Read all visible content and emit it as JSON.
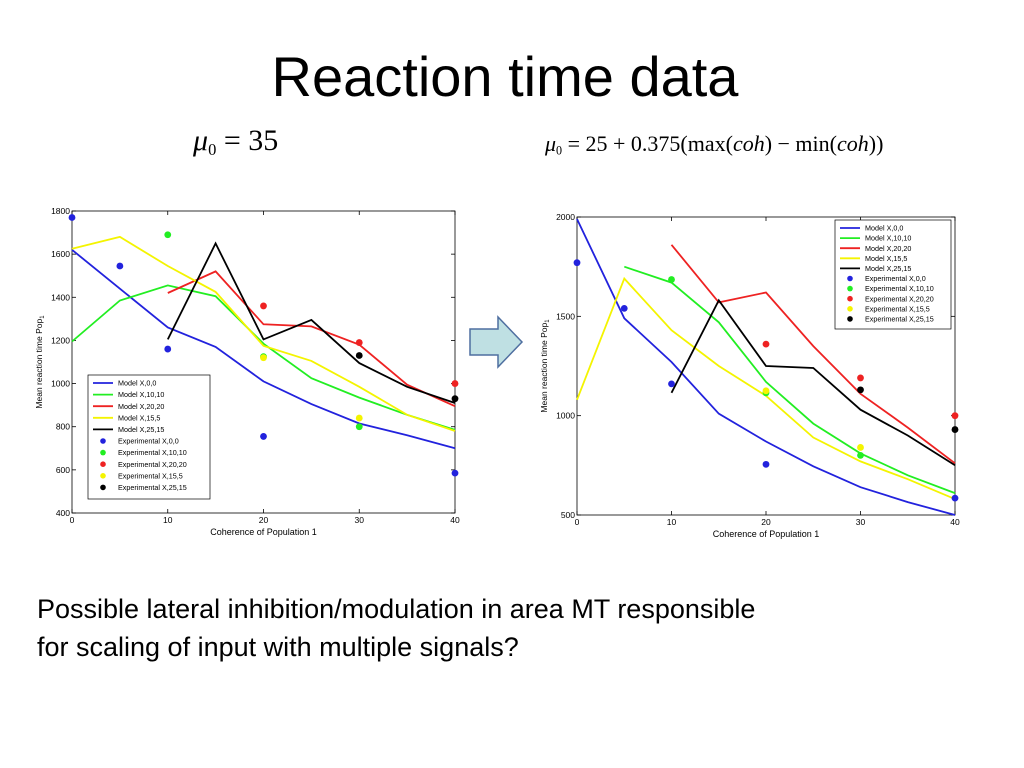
{
  "title": "Reaction time data",
  "equation_left": {
    "sym": "μ",
    "sub": "0",
    "rest": " = 35"
  },
  "equation_right": {
    "sym": "μ",
    "sub": "0",
    "p1": " = 25 + 0.375(max(",
    "coh": "coh",
    "p2": ") − min(",
    "p3": "))"
  },
  "caption_line1": "Possible lateral inhibition/modulation in area MT responsible",
  "caption_line2": "for scaling of input with multiple signals?",
  "colors": {
    "blue": "#2222dd",
    "green": "#22ee22",
    "red": "#ee2222",
    "yellow": "#f4f400",
    "black": "#000000",
    "arrow_fill": "#bfe0e3",
    "arrow_stroke": "#4f6fa0"
  },
  "chart_data": [
    {
      "type": "line",
      "xlabel": "Coherence of Population 1",
      "ylabel": "Mean reaction time Pop",
      "ylabel_sub": "1",
      "xlim": [
        0,
        40
      ],
      "ylim": [
        400,
        1800
      ],
      "xticks": [
        0,
        10,
        20,
        30,
        40
      ],
      "yticks": [
        400,
        600,
        800,
        1000,
        1200,
        1400,
        1600,
        1800
      ],
      "legend_position": "bottom-left",
      "series": [
        {
          "name": "Model X,0,0",
          "kind": "line",
          "color": "blue",
          "x": [
            0,
            5,
            10,
            15,
            20,
            25,
            30,
            35,
            40
          ],
          "y": [
            1620,
            1440,
            1260,
            1170,
            1010,
            905,
            815,
            760,
            700
          ]
        },
        {
          "name": "Model X,10,10",
          "kind": "line",
          "color": "green",
          "x": [
            0,
            5,
            10,
            15,
            20,
            25,
            30,
            35,
            40
          ],
          "y": [
            1195,
            1385,
            1455,
            1405,
            1185,
            1025,
            935,
            855,
            785
          ]
        },
        {
          "name": "Model X,20,20",
          "kind": "line",
          "color": "red",
          "x": [
            10,
            15,
            20,
            25,
            30,
            35,
            40
          ],
          "y": [
            1420,
            1520,
            1275,
            1265,
            1180,
            995,
            895
          ]
        },
        {
          "name": "Model X,15,5",
          "kind": "line",
          "color": "yellow",
          "x": [
            0,
            5,
            10,
            15,
            20,
            25,
            30,
            35,
            40
          ],
          "y": [
            1625,
            1680,
            1545,
            1425,
            1175,
            1105,
            985,
            855,
            780
          ]
        },
        {
          "name": "Model X,25,15",
          "kind": "line",
          "color": "black",
          "x": [
            10,
            15,
            20,
            25,
            30,
            35,
            40
          ],
          "y": [
            1205,
            1650,
            1205,
            1295,
            1095,
            985,
            910
          ]
        },
        {
          "name": "Experimental X,0,0",
          "kind": "points",
          "color": "blue",
          "x": [
            0,
            5,
            10,
            20,
            40
          ],
          "y": [
            1770,
            1545,
            1160,
            755,
            585
          ]
        },
        {
          "name": "Experimental X,10,10",
          "kind": "points",
          "color": "green",
          "x": [
            10,
            20,
            30
          ],
          "y": [
            1690,
            1125,
            800
          ]
        },
        {
          "name": "Experimental X,20,20",
          "kind": "points",
          "color": "red",
          "x": [
            20,
            30,
            40
          ],
          "y": [
            1360,
            1190,
            1000
          ]
        },
        {
          "name": "Experimental X,15,5",
          "kind": "points",
          "color": "yellow",
          "x": [
            20,
            30
          ],
          "y": [
            1120,
            840
          ]
        },
        {
          "name": "Experimental X,25,15",
          "kind": "points",
          "color": "black",
          "x": [
            30,
            40
          ],
          "y": [
            1130,
            930
          ]
        }
      ]
    },
    {
      "type": "line",
      "xlabel": "Coherence of Population 1",
      "ylabel": "Mean reaction time Pop",
      "ylabel_sub": "1",
      "xlim": [
        0,
        40
      ],
      "ylim": [
        500,
        2000
      ],
      "xticks": [
        0,
        10,
        20,
        30,
        40
      ],
      "yticks": [
        500,
        1000,
        1500,
        2000
      ],
      "legend_position": "top-right",
      "series": [
        {
          "name": "Model X,0,0",
          "kind": "line",
          "color": "blue",
          "x": [
            0,
            5,
            10,
            15,
            20,
            25,
            30,
            35,
            40
          ],
          "y": [
            1990,
            1490,
            1270,
            1010,
            870,
            745,
            640,
            565,
            500
          ]
        },
        {
          "name": "Model X,10,10",
          "kind": "line",
          "color": "green",
          "x": [
            5,
            10,
            15,
            20,
            25,
            30,
            35,
            40
          ],
          "y": [
            1750,
            1670,
            1470,
            1170,
            960,
            810,
            700,
            610
          ]
        },
        {
          "name": "Model X,20,20",
          "kind": "line",
          "color": "red",
          "x": [
            10,
            15,
            20,
            25,
            30,
            35,
            40
          ],
          "y": [
            1860,
            1570,
            1620,
            1350,
            1110,
            940,
            760
          ]
        },
        {
          "name": "Model X,15,5",
          "kind": "line",
          "color": "yellow",
          "x": [
            0,
            5,
            10,
            15,
            20,
            25,
            30,
            35,
            40
          ],
          "y": [
            1080,
            1690,
            1430,
            1250,
            1100,
            890,
            770,
            680,
            580
          ]
        },
        {
          "name": "Model X,25,15",
          "kind": "line",
          "color": "black",
          "x": [
            10,
            15,
            20,
            25,
            30,
            35,
            40
          ],
          "y": [
            1115,
            1580,
            1250,
            1240,
            1030,
            900,
            750
          ]
        },
        {
          "name": "Experimental X,0,0",
          "kind": "points",
          "color": "blue",
          "x": [
            0,
            5,
            10,
            20,
            40
          ],
          "y": [
            1770,
            1540,
            1160,
            755,
            585
          ]
        },
        {
          "name": "Experimental X,10,10",
          "kind": "points",
          "color": "green",
          "x": [
            10,
            20,
            30
          ],
          "y": [
            1685,
            1115,
            800
          ]
        },
        {
          "name": "Experimental X,20,20",
          "kind": "points",
          "color": "red",
          "x": [
            20,
            30,
            40
          ],
          "y": [
            1360,
            1190,
            1000
          ]
        },
        {
          "name": "Experimental X,15,5",
          "kind": "points",
          "color": "yellow",
          "x": [
            20,
            30
          ],
          "y": [
            1125,
            840
          ]
        },
        {
          "name": "Experimental X,25,15",
          "kind": "points",
          "color": "black",
          "x": [
            30,
            40
          ],
          "y": [
            1130,
            930
          ]
        }
      ]
    }
  ]
}
